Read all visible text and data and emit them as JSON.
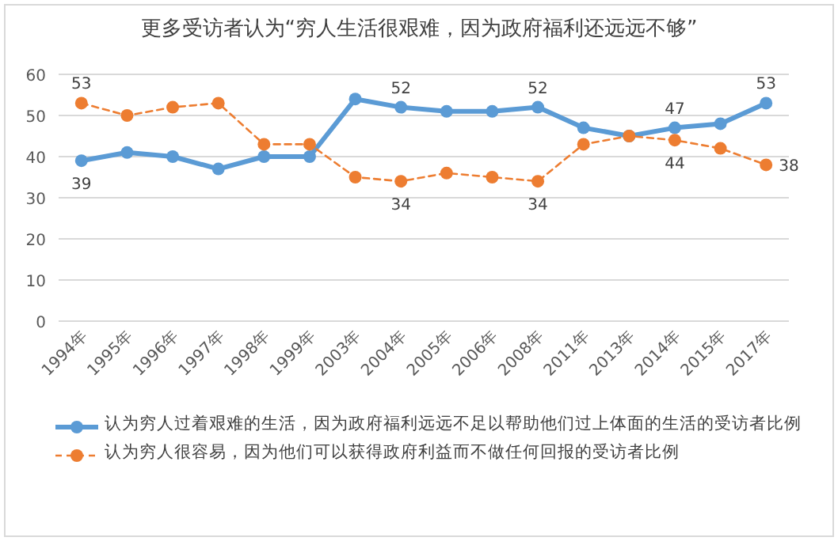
{
  "chart_data": {
    "type": "line",
    "title": "更多受访者认为“穷人生活很艰难，因为政府福利还远远不够”",
    "categories": [
      "1994年",
      "1995年",
      "1996年",
      "1997年",
      "1998年",
      "1999年",
      "2003年",
      "2004年",
      "2005年",
      "2006年",
      "2008年",
      "2011年",
      "2013年",
      "2014年",
      "2015年",
      "2017年"
    ],
    "series": [
      {
        "name": "认为穷人过着艰难的生活，因为政府福利远远不足以帮助他们过上体面的生活的受访者比例",
        "color": "#5b9bd5",
        "line_style": "solid",
        "values": [
          39,
          41,
          40,
          37,
          40,
          40,
          54,
          52,
          51,
          51,
          52,
          47,
          45,
          47,
          48,
          53
        ],
        "value_labels": [
          "39",
          null,
          null,
          null,
          null,
          null,
          null,
          "52",
          null,
          null,
          "52",
          null,
          null,
          "47",
          null,
          "53"
        ]
      },
      {
        "name": "认为穷人很容易，因为他们可以获得政府利益而不做任何回报的受访者比例",
        "color": "#ed7d31",
        "line_style": "dashed",
        "values": [
          53,
          50,
          52,
          53,
          43,
          43,
          35,
          34,
          36,
          35,
          34,
          43,
          45,
          44,
          42,
          38
        ],
        "value_labels": [
          "53",
          null,
          null,
          null,
          null,
          null,
          null,
          "34",
          null,
          null,
          "34",
          null,
          null,
          "44",
          null,
          "38"
        ]
      }
    ],
    "ylim": [
      0,
      60
    ],
    "yticks": [
      0,
      10,
      20,
      30,
      40,
      50,
      60
    ],
    "grid": "y",
    "marker": "circle",
    "legend": "bottom"
  }
}
